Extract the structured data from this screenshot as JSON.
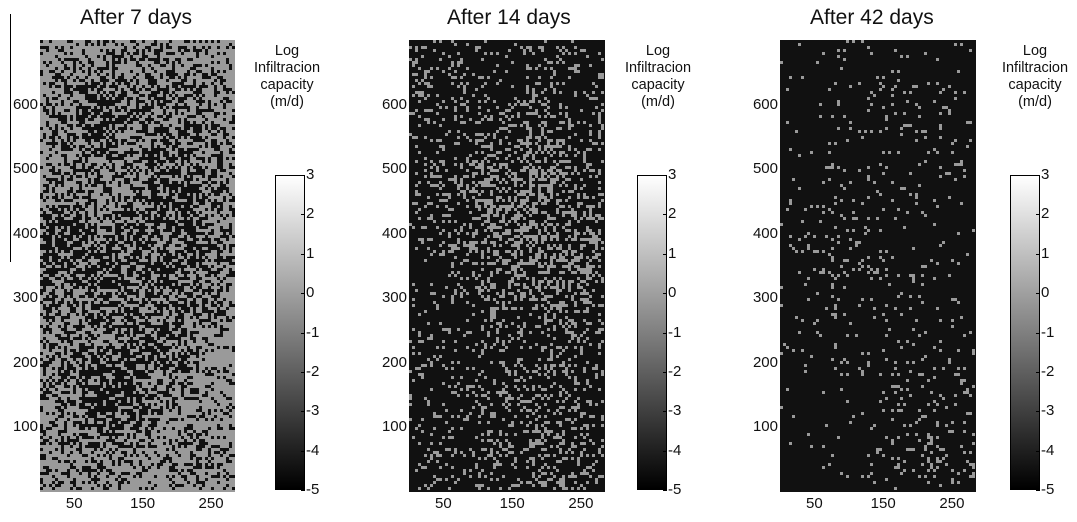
{
  "chart_data": [
    {
      "type": "heatmap",
      "title": "After 7 days",
      "xticks": [
        "50",
        "150",
        "250"
      ],
      "yticks": [
        "600",
        "500",
        "400",
        "300",
        "200",
        "100"
      ],
      "xlim": [
        0,
        285
      ],
      "ylim": [
        0,
        700
      ],
      "colorbar": {
        "label": [
          "Log",
          "Infiltracion",
          "capacity",
          "(m/d)"
        ],
        "ticks": [
          "3",
          "2",
          "1",
          "0",
          "-1",
          "-2",
          "-3",
          "-4",
          "-5"
        ],
        "range": [
          -5,
          3
        ],
        "colormap": "gray"
      },
      "fraction_high_capacity": 0.7,
      "high_value_color": "#9a9a9a",
      "low_value_color": "#111111"
    },
    {
      "type": "heatmap",
      "title": "After 14 days",
      "xticks": [
        "50",
        "150",
        "250"
      ],
      "yticks": [
        "600",
        "500",
        "400",
        "300",
        "200",
        "100"
      ],
      "xlim": [
        0,
        285
      ],
      "ylim": [
        0,
        700
      ],
      "colorbar": {
        "label": [
          "Log",
          "Infiltracion",
          "capacity",
          "(m/d)"
        ],
        "ticks": [
          "3",
          "2",
          "1",
          "0",
          "-1",
          "-2",
          "-3",
          "-4",
          "-5"
        ],
        "range": [
          -5,
          3
        ],
        "colormap": "gray"
      },
      "fraction_high_capacity": 0.15,
      "high_value_color": "#9a9a9a",
      "low_value_color": "#111111"
    },
    {
      "type": "heatmap",
      "title": "After 42 days",
      "xticks": [
        "50",
        "150",
        "250"
      ],
      "yticks": [
        "600",
        "500",
        "400",
        "300",
        "200",
        "100"
      ],
      "xlim": [
        0,
        285
      ],
      "ylim": [
        0,
        700
      ],
      "colorbar": {
        "label": [
          "Log",
          "Infiltracion",
          "capacity",
          "(m/d)"
        ],
        "ticks": [
          "3",
          "2",
          "1",
          "0",
          "-1",
          "-2",
          "-3",
          "-4",
          "-5"
        ],
        "range": [
          -5,
          3
        ],
        "colormap": "gray"
      },
      "fraction_high_capacity": 0.04,
      "high_value_color": "#9a9a9a",
      "low_value_color": "#111111"
    }
  ]
}
